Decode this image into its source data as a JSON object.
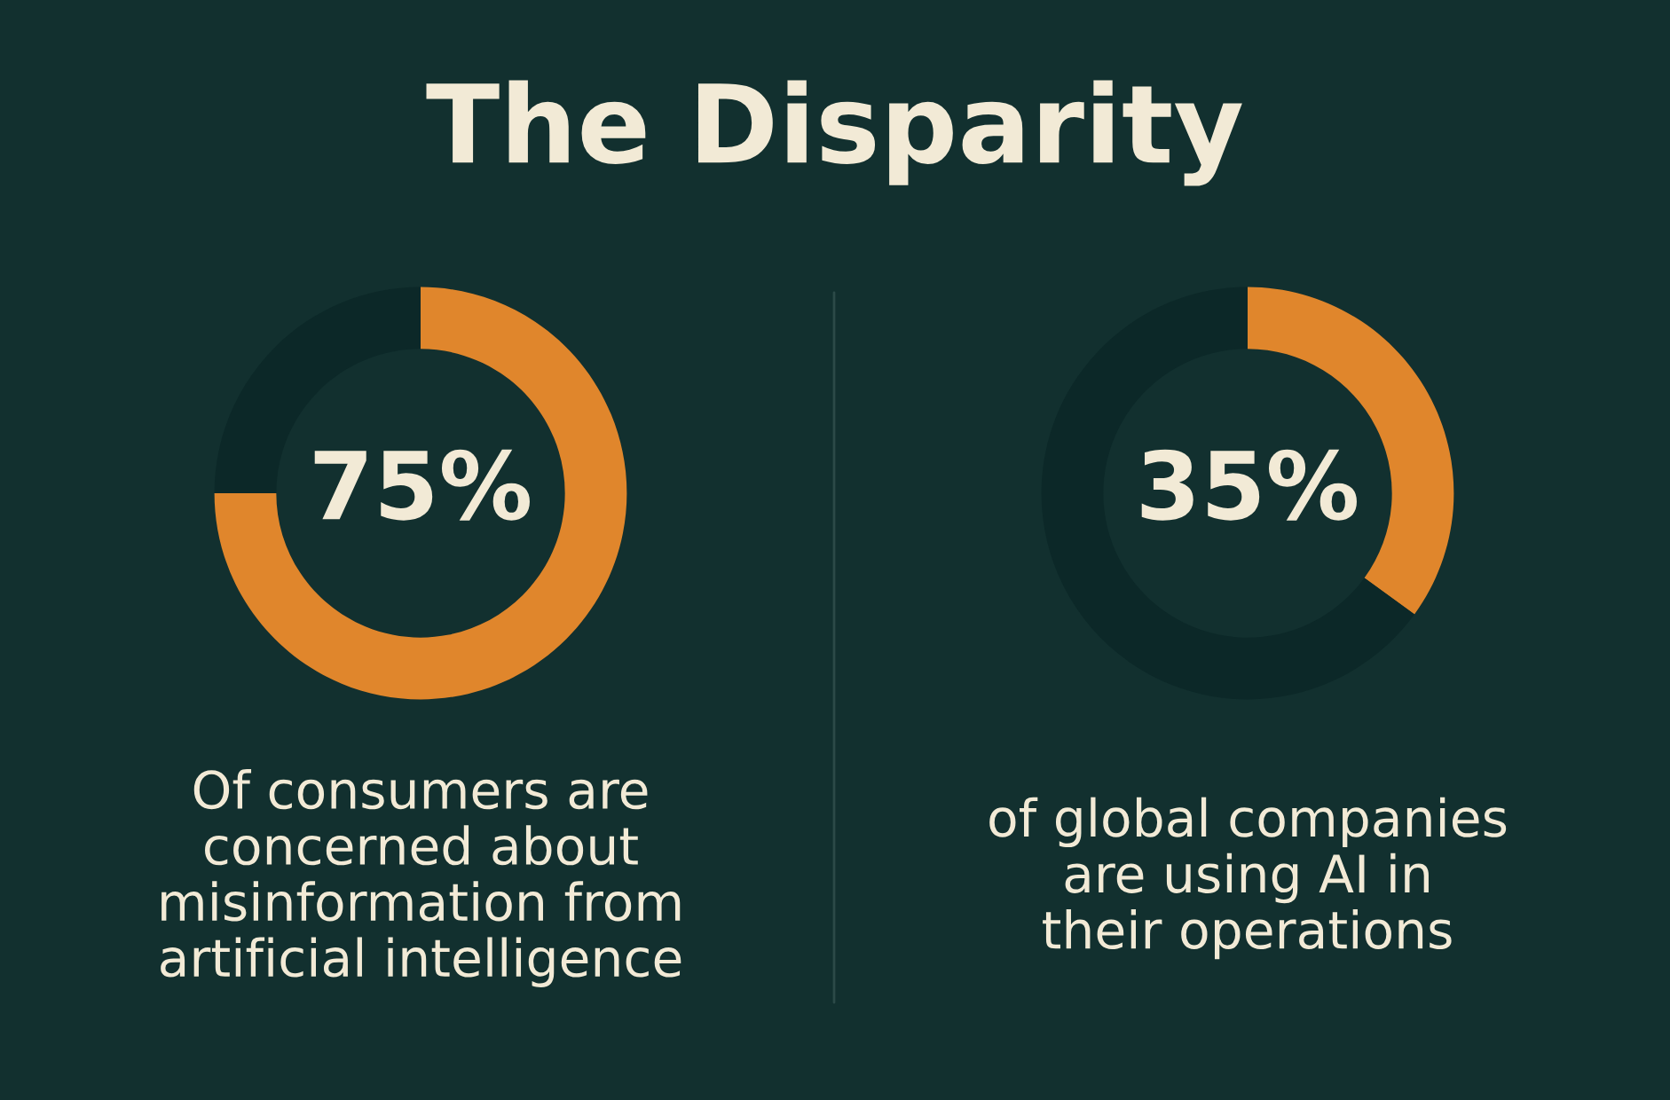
{
  "chart_data": [
    {
      "type": "donut",
      "title": "The Disparity",
      "categories": [
        null,
        null
      ],
      "values": [
        75,
        25
      ],
      "colors": [
        "#e0862c",
        "#0c2828"
      ],
      "value_labels": [
        "75%",
        null
      ],
      "annotations": [
        "Of consumers are\nconcerned about\nmisinformation from\nartificial intelligence"
      ]
    },
    {
      "type": "donut",
      "categories": [
        null,
        null
      ],
      "values": [
        35,
        65
      ],
      "colors": [
        "#e0862c",
        "#0c2828"
      ],
      "value_labels": [
        "35%",
        null
      ],
      "annotations": [
        "of global companies\nare using AI in\ntheir operations"
      ]
    }
  ]
}
